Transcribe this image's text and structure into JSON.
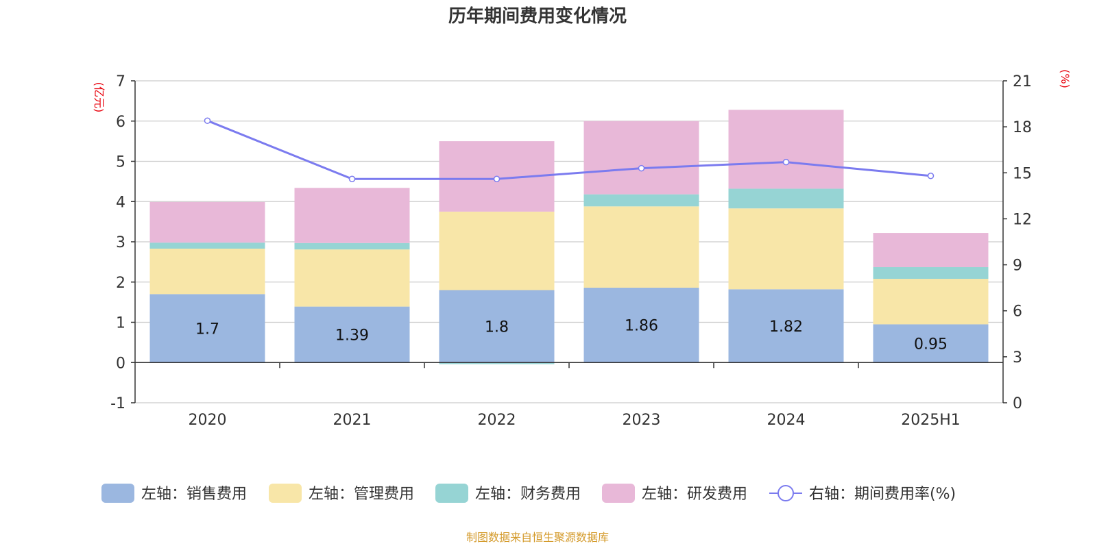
{
  "chart_data": {
    "type": "bar",
    "title": "历年期间费用变化情况",
    "categories": [
      "2020",
      "2021",
      "2022",
      "2023",
      "2024",
      "2025H1"
    ],
    "y_left": {
      "unit": "(亿元)",
      "ticks": [
        "7",
        "6",
        "5",
        "4",
        "3",
        "2",
        "1",
        "0",
        "-1"
      ],
      "ylim": [
        -1,
        7
      ]
    },
    "y_right": {
      "unit": "(%)",
      "ticks": [
        "21",
        "18",
        "15",
        "12",
        "9",
        "6",
        "3",
        "0"
      ],
      "ylim": [
        0,
        21
      ]
    },
    "stacked": true,
    "series": [
      {
        "name": "左轴：销售费用",
        "axis": "left",
        "type": "bar",
        "color": "#9bb7e0",
        "values": [
          1.7,
          1.39,
          1.8,
          1.86,
          1.82,
          0.95
        ],
        "labels": [
          "1.7",
          "1.39",
          "1.8",
          "1.86",
          "1.82",
          "0.95"
        ]
      },
      {
        "name": "左轴：管理费用",
        "axis": "left",
        "type": "bar",
        "color": "#f8e6a8",
        "values": [
          1.13,
          1.42,
          1.95,
          2.02,
          2.01,
          1.13
        ]
      },
      {
        "name": "左轴：财务费用",
        "axis": "left",
        "type": "bar",
        "color": "#96d4d4",
        "values": [
          0.15,
          0.16,
          -0.04,
          0.3,
          0.49,
          0.29
        ]
      },
      {
        "name": "左轴：研发费用",
        "axis": "left",
        "type": "bar",
        "color": "#e8b8d8",
        "values": [
          1.01,
          1.37,
          1.75,
          1.82,
          1.96,
          0.85
        ]
      },
      {
        "name": "右轴：期间费用率(%)",
        "axis": "right",
        "type": "line",
        "color": "#7b7bef",
        "values": [
          18.4,
          14.6,
          14.6,
          15.3,
          15.7,
          14.8
        ]
      }
    ],
    "grid": true,
    "legend_position": "bottom"
  },
  "source_note": "制图数据来自恒生聚源数据库"
}
